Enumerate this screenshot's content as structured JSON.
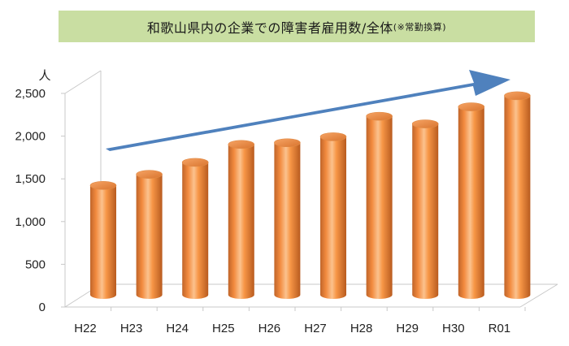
{
  "chart_data": {
    "type": "bar",
    "title": "和歌山県内の企業での障害者雇用数/全体",
    "title_note": "(※常勤換算)",
    "ylabel": "人",
    "xlabel": "",
    "categories": [
      "H22",
      "H23",
      "H24",
      "H25",
      "H26",
      "H27",
      "H28",
      "H29",
      "H30",
      "R01"
    ],
    "values": [
      1280,
      1410,
      1550,
      1760,
      1780,
      1850,
      2090,
      2000,
      2200,
      2330
    ],
    "ylim": [
      0,
      2500
    ],
    "yticks": [
      "0",
      "500",
      "1,000",
      "1,500",
      "2,000",
      "2,500"
    ],
    "grid": false,
    "style": "3d-cylinder",
    "trend_arrow": true,
    "colors": {
      "bar": "#f79646",
      "bar_dark": "#a9521a",
      "bar_light": "#fbd2a9",
      "arrow": "#4f81bd",
      "title_bg": "#c9dea2"
    }
  }
}
